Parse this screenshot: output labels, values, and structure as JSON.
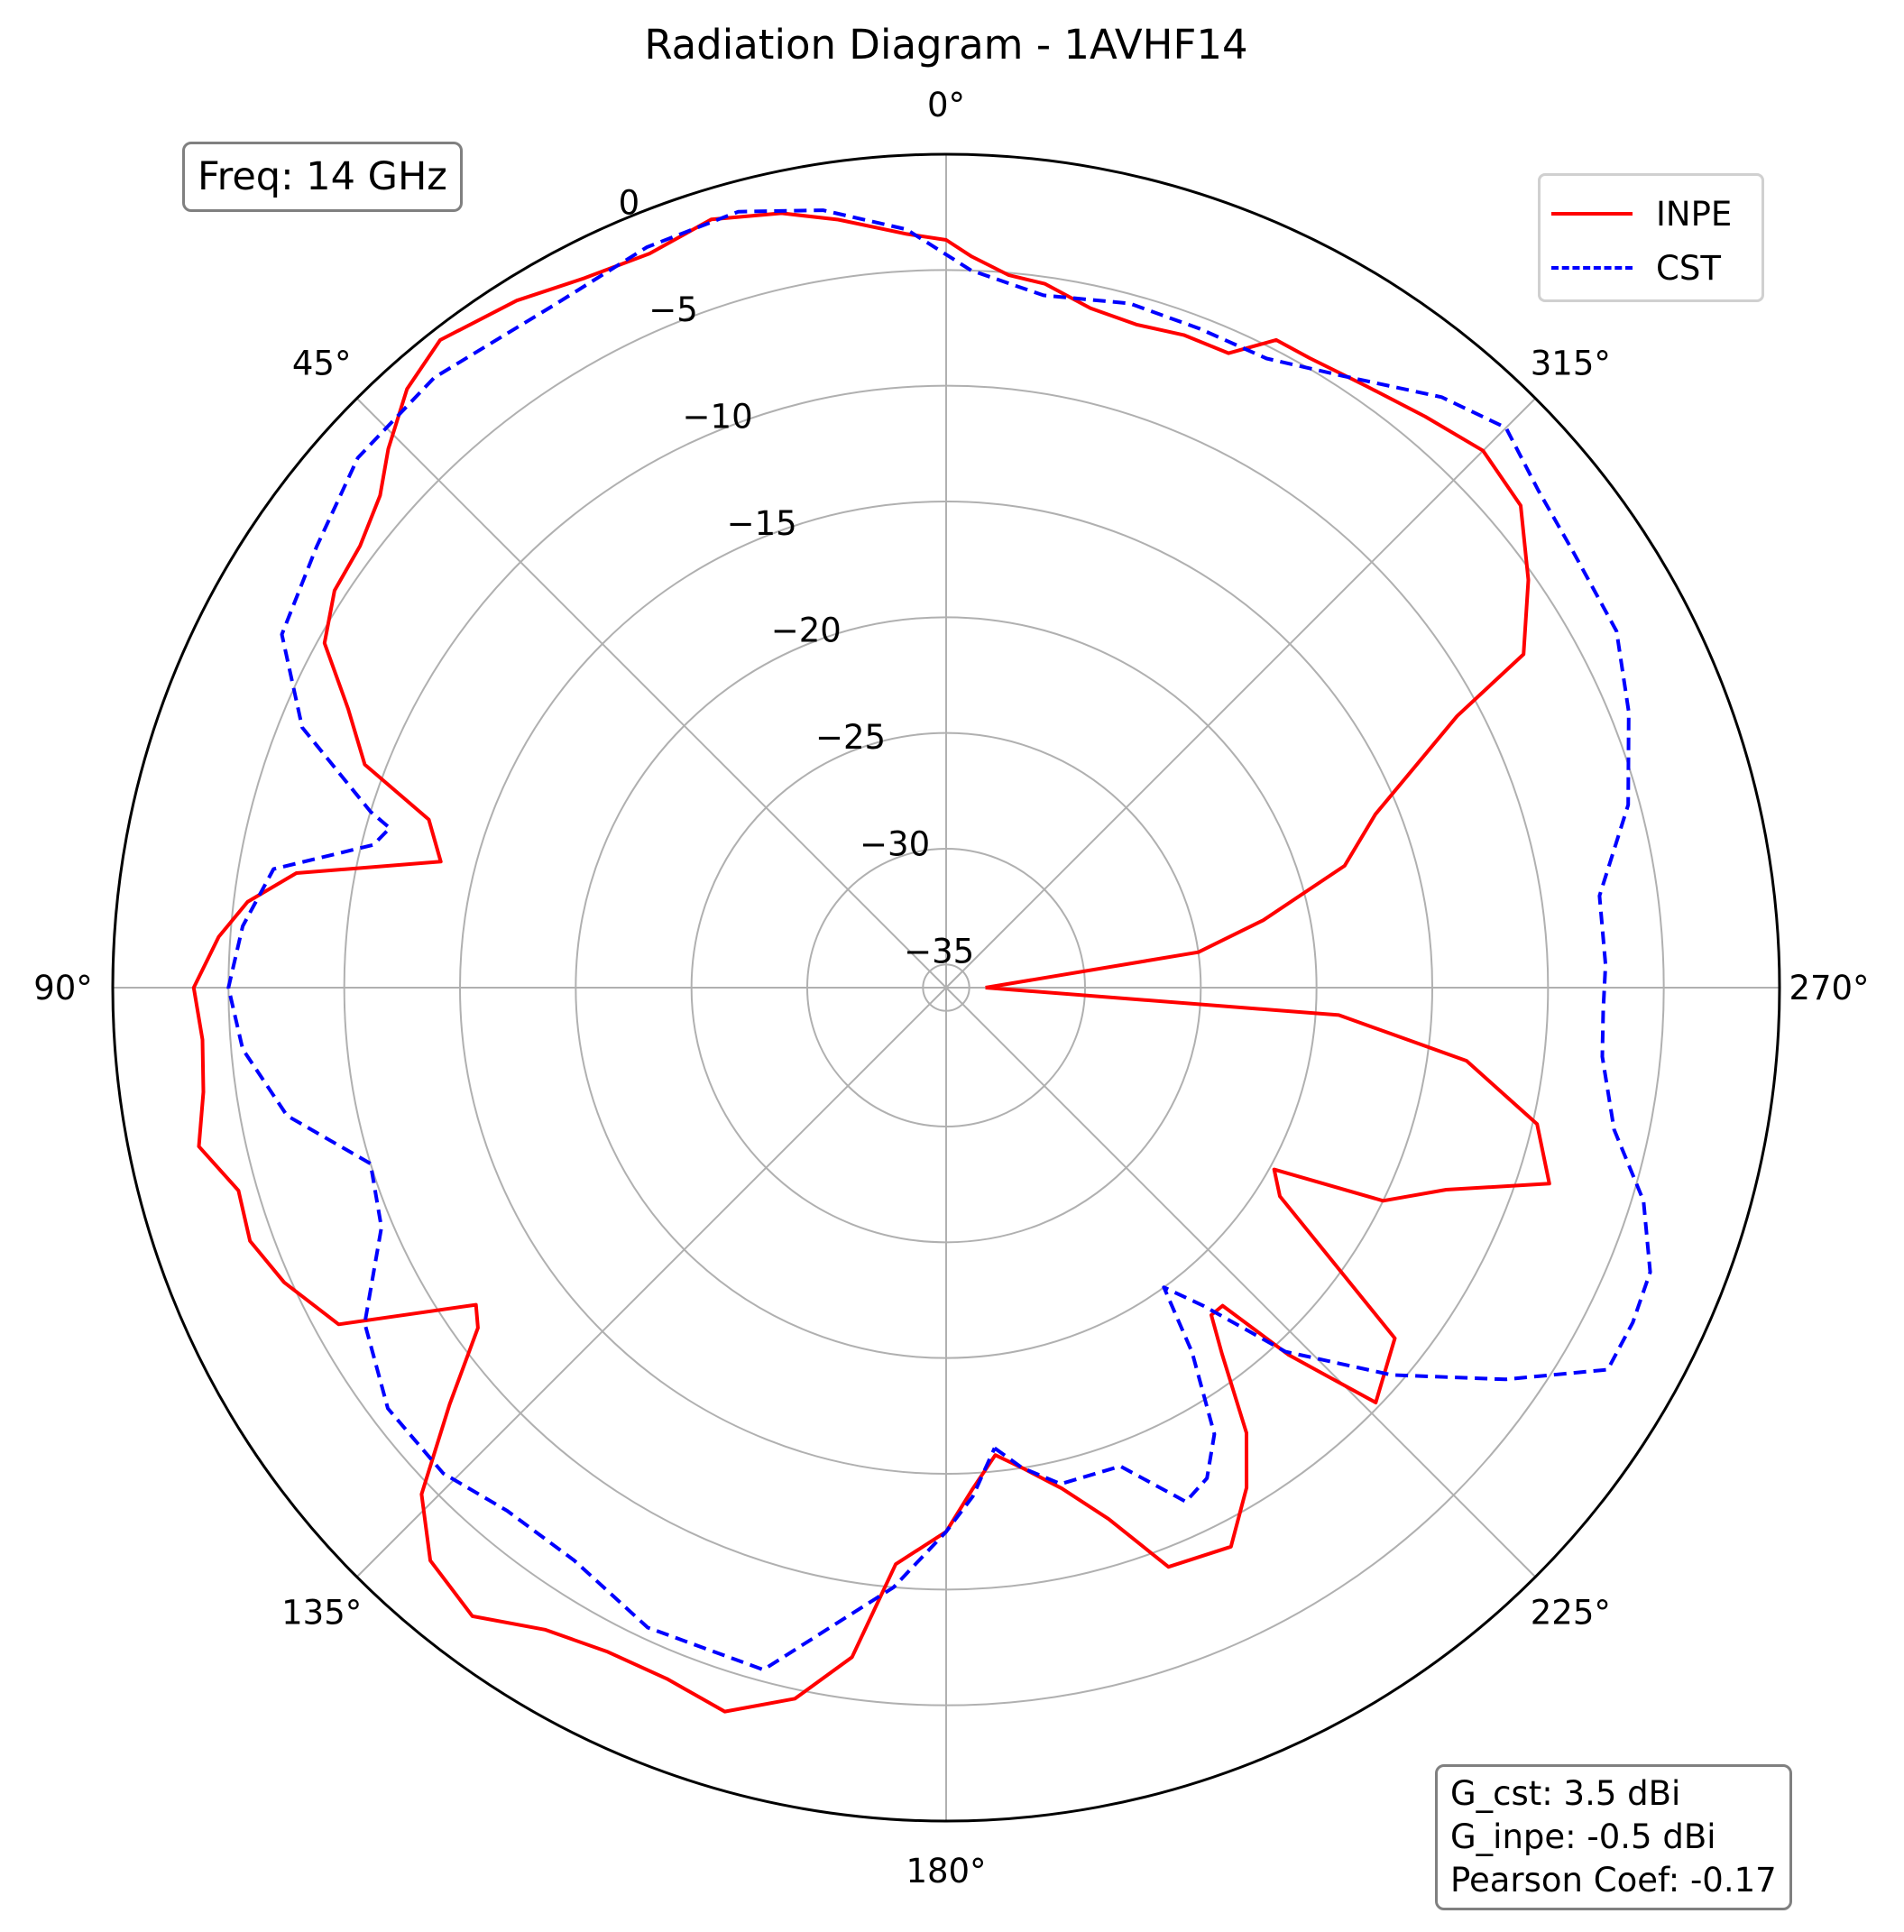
{
  "chart_data": {
    "type": "line",
    "subtype": "polar",
    "title": "Radiation Diagram - 1AVHF14",
    "theta_direction": "clockwise",
    "theta_zero": "top",
    "theta_ticks": [
      "0°",
      "45°",
      "90°",
      "135°",
      "180°",
      "225°",
      "270°",
      "315°"
    ],
    "theta_tick_values": [
      0,
      45,
      90,
      135,
      180,
      225,
      270,
      315
    ],
    "r_range": [
      -36,
      0
    ],
    "r_ticks": [
      0,
      -5,
      -10,
      -15,
      -20,
      -25,
      -30,
      -35
    ],
    "r_tick_labels": [
      "0",
      "−5",
      "−10",
      "−15",
      "−20",
      "−25",
      "−30",
      "−35"
    ],
    "grid": true,
    "legend": {
      "placement": "top-right"
    },
    "series": [
      {
        "name": "INPE",
        "color": "#ff0000",
        "dash": "solid",
        "points": [
          [
            270,
            -34.3
          ],
          [
            278,
            -25
          ],
          [
            282,
            -22
          ],
          [
            287,
            -18
          ],
          [
            292,
            -16
          ],
          [
            298,
            -11
          ],
          [
            300,
            -7.2
          ],
          [
            305,
            -5.3
          ],
          [
            310,
            -3.6
          ],
          [
            315,
            -3.2
          ],
          [
            320,
            -3.8
          ],
          [
            325,
            -4.3
          ],
          [
            330,
            -4.6
          ],
          [
            333,
            -4.6
          ],
          [
            336,
            -6.0
          ],
          [
            340,
            -6.0
          ],
          [
            344,
            -6.2
          ],
          [
            348,
            -6.0
          ],
          [
            352,
            -5.3
          ],
          [
            355,
            -5.1
          ],
          [
            358,
            -4.4
          ],
          [
            0,
            -3.7
          ],
          [
            3,
            -3.4
          ],
          [
            8,
            -2.5
          ],
          [
            12,
            -1.8
          ],
          [
            17,
            -1.3
          ],
          [
            22,
            -1.8
          ],
          [
            27,
            -1.6
          ],
          [
            32,
            -1.0
          ],
          [
            38,
            -0.5
          ],
          [
            42,
            -1.2
          ],
          [
            46,
            -2.5
          ],
          [
            49,
            -3.6
          ],
          [
            53,
            -4.3
          ],
          [
            57,
            -4.5
          ],
          [
            61,
            -5.3
          ],
          [
            65,
            -7.5
          ],
          [
            69,
            -9.1
          ],
          [
            72,
            -12.5
          ],
          [
            76,
            -13.5
          ],
          [
            80,
            -7.5
          ],
          [
            83,
            -5.6
          ],
          [
            86,
            -4.5
          ],
          [
            90,
            -3.5
          ],
          [
            94,
            -3.8
          ],
          [
            98,
            -3.6
          ],
          [
            102,
            -3.0
          ],
          [
            106,
            -4.2
          ],
          [
            110,
            -4.0
          ],
          [
            114,
            -4.7
          ],
          [
            119,
            -6.0
          ],
          [
            124,
            -11.5
          ],
          [
            126,
            -11.0
          ],
          [
            130,
            -8.0
          ],
          [
            134,
            -4.5
          ],
          [
            138,
            -2.7
          ],
          [
            143,
            -2.0
          ],
          [
            148,
            -3.3
          ],
          [
            153,
            -3.8
          ],
          [
            158,
            -3.8
          ],
          [
            163,
            -3.3
          ],
          [
            168,
            -4.6
          ],
          [
            172,
            -6.8
          ],
          [
            175,
            -11.0
          ],
          [
            180,
            -12.5
          ],
          [
            183,
            -14.3
          ],
          [
            186,
            -15.7
          ],
          [
            189,
            -15.0
          ],
          [
            193,
            -13.8
          ],
          [
            197,
            -12.0
          ],
          [
            201,
            -9.2
          ],
          [
            207,
            -8.9
          ],
          [
            211,
            -10.8
          ],
          [
            214,
            -12.8
          ],
          [
            217,
            -16.2
          ],
          [
            219,
            -17.8
          ],
          [
            221,
            -17.8
          ],
          [
            223,
            -14.3
          ],
          [
            226,
            -10.2
          ],
          [
            232,
            -11.4
          ],
          [
            238,
            -19.0
          ],
          [
            241,
            -19.8
          ],
          [
            244,
            -15.0
          ],
          [
            248,
            -12.7
          ],
          [
            252,
            -8.6
          ],
          [
            257,
            -9.8
          ],
          [
            262,
            -13.3
          ],
          [
            266,
            -19.0
          ],
          [
            270,
            -34.3
          ]
        ]
      },
      {
        "name": "CST",
        "color": "#0000ff",
        "dash": "dashed",
        "points": [
          [
            186,
            -16.0
          ],
          [
            189,
            -15.0
          ],
          [
            193,
            -14.0
          ],
          [
            200,
            -14.0
          ],
          [
            205,
            -11.5
          ],
          [
            208,
            -12.0
          ],
          [
            211,
            -13.5
          ],
          [
            214,
            -17.0
          ],
          [
            216,
            -20.0
          ],
          [
            219,
            -18.3
          ],
          [
            223,
            -14.5
          ],
          [
            229,
            -10.5
          ],
          [
            235,
            -6.5
          ],
          [
            240,
            -3.0
          ],
          [
            244,
            -3.0
          ],
          [
            248,
            -3.2
          ],
          [
            253,
            -4.5
          ],
          [
            258,
            -6.5
          ],
          [
            264,
            -7.5
          ],
          [
            268,
            -7.6
          ],
          [
            272,
            -7.5
          ],
          [
            278,
            -7.5
          ],
          [
            285,
            -5.5
          ],
          [
            292,
            -4.2
          ],
          [
            298,
            -3.2
          ],
          [
            305,
            -3.0
          ],
          [
            310,
            -2.6
          ],
          [
            315,
            -1.8
          ],
          [
            320,
            -2.7
          ],
          [
            327,
            -4.5
          ],
          [
            333,
            -5.5
          ],
          [
            339,
            -5.5
          ],
          [
            345,
            -5.4
          ],
          [
            352,
            -5.8
          ],
          [
            358,
            -5.0
          ],
          [
            3,
            -3.2
          ],
          [
            9,
            -2.0
          ],
          [
            15,
            -1.3
          ],
          [
            22,
            -1.5
          ],
          [
            30,
            -2.0
          ],
          [
            40,
            -1.6
          ],
          [
            48,
            -1.8
          ],
          [
            55,
            -2.8
          ],
          [
            62,
            -3.5
          ],
          [
            68,
            -6.0
          ],
          [
            73,
            -10.0
          ],
          [
            74,
            -11.0
          ],
          [
            76,
            -10.5
          ],
          [
            80,
            -6.5
          ],
          [
            85,
            -5.5
          ],
          [
            90,
            -5.0
          ],
          [
            95,
            -5.5
          ],
          [
            101,
            -7.0
          ],
          [
            107,
            -10.0
          ],
          [
            113,
            -9.5
          ],
          [
            120,
            -7.0
          ],
          [
            127,
            -5.8
          ],
          [
            134,
            -5.8
          ],
          [
            140,
            -6.5
          ],
          [
            147,
            -6.5
          ],
          [
            155,
            -5.5
          ],
          [
            165,
            -5.5
          ],
          [
            175,
            -10.0
          ],
          [
            180,
            -12.5
          ],
          [
            183,
            -14.0
          ],
          [
            186,
            -16.0
          ]
        ]
      }
    ]
  },
  "annotations": {
    "freq": "Freq: 14 GHz",
    "stats": [
      "G_cst: 3.5 dBi",
      "G_inpe: -0.5 dBi",
      "Pearson Coef: -0.17"
    ]
  }
}
